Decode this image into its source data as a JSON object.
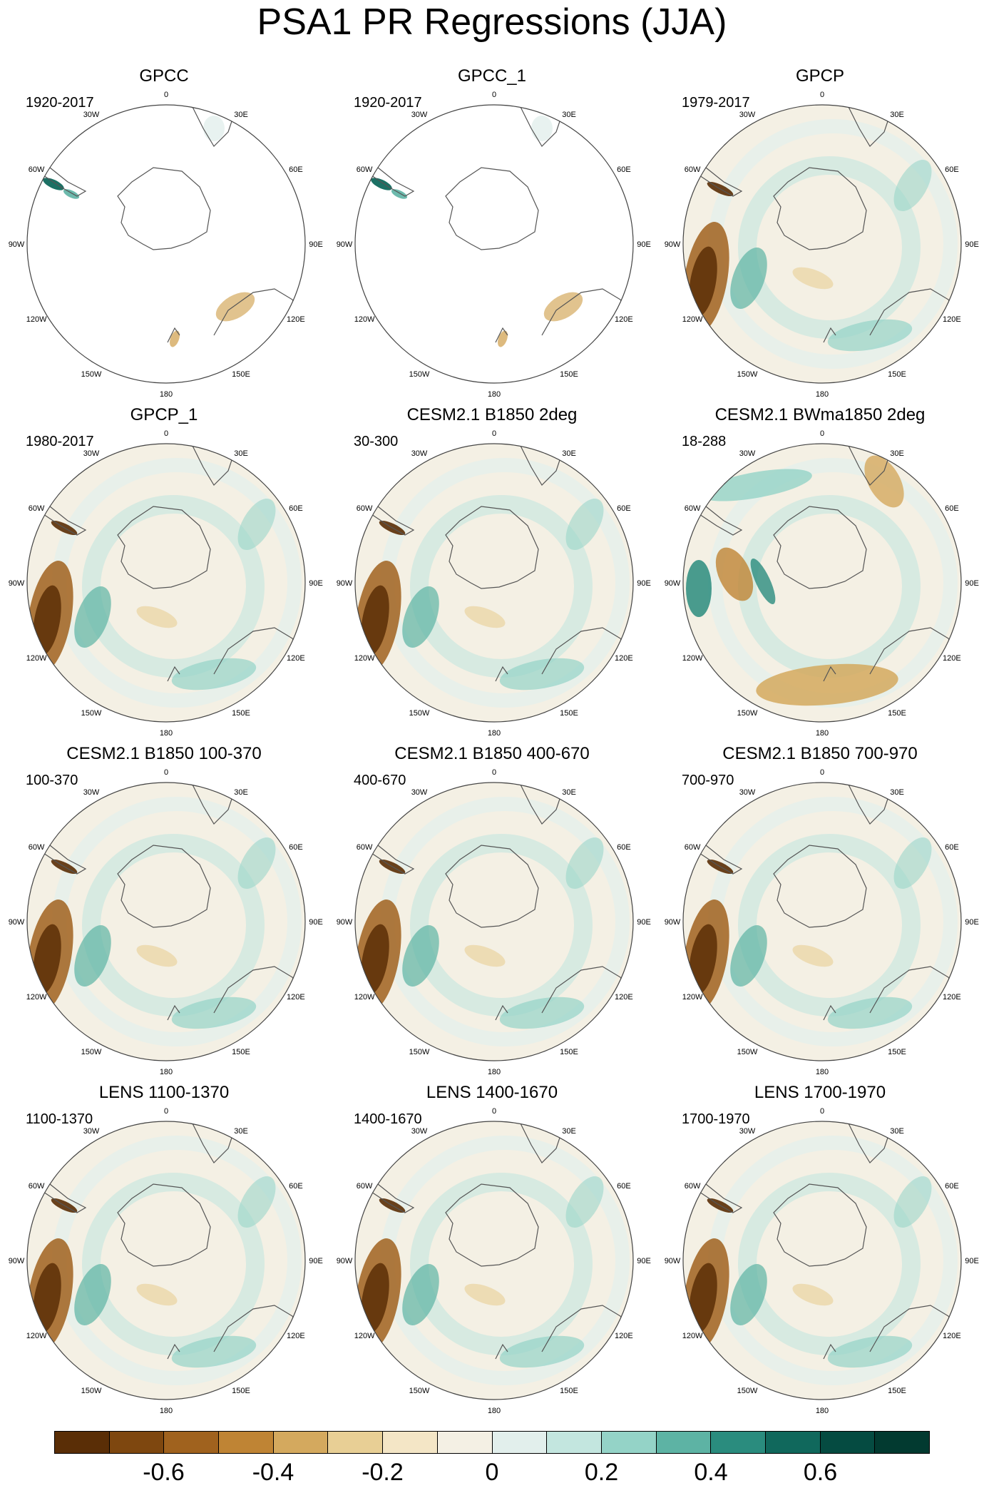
{
  "title": "PSA1 PR Regressions (JJA)",
  "panels": [
    {
      "title": "GPCC",
      "subtitle": "1920-2017",
      "kind": "obs-land"
    },
    {
      "title": "GPCC_1",
      "subtitle": "1920-2017",
      "kind": "obs-land"
    },
    {
      "title": "GPCP",
      "subtitle": "1979-2017",
      "kind": "obs-full"
    },
    {
      "title": "GPCP_1",
      "subtitle": "1980-2017",
      "kind": "obs-full"
    },
    {
      "title": "CESM2.1 B1850 2deg",
      "subtitle": "30-300",
      "kind": "model"
    },
    {
      "title": "CESM2.1 BWma1850 2deg",
      "subtitle": "18-288",
      "kind": "model-alt"
    },
    {
      "title": "CESM2.1 B1850 100-370",
      "subtitle": "100-370",
      "kind": "model"
    },
    {
      "title": "CESM2.1 B1850 400-670",
      "subtitle": "400-670",
      "kind": "model"
    },
    {
      "title": "CESM2.1 B1850 700-970",
      "subtitle": "700-970",
      "kind": "model"
    },
    {
      "title": "LENS 1100-1370",
      "subtitle": "1100-1370",
      "kind": "model"
    },
    {
      "title": "LENS 1400-1670",
      "subtitle": "1400-1670",
      "kind": "model"
    },
    {
      "title": "LENS 1700-1970",
      "subtitle": "1700-1970",
      "kind": "model"
    }
  ],
  "longitude_labels": [
    "0",
    "30E",
    "60E",
    "90E",
    "120E",
    "150E",
    "180",
    "150W",
    "120W",
    "90W",
    "60W",
    "30W"
  ],
  "colorbar": {
    "colors": [
      "#5a2e06",
      "#7e470f",
      "#a0621e",
      "#bf8434",
      "#d4a95e",
      "#e8cf95",
      "#f4e6c6",
      "#f4f0e4",
      "#e2efec",
      "#c3e6df",
      "#94d3c7",
      "#5db3a4",
      "#2a8c7e",
      "#10685c",
      "#054b41",
      "#023a30"
    ],
    "tick_labels": [
      "-0.6",
      "-0.4",
      "-0.2",
      "0",
      "0.2",
      "0.4",
      "0.6"
    ]
  }
}
